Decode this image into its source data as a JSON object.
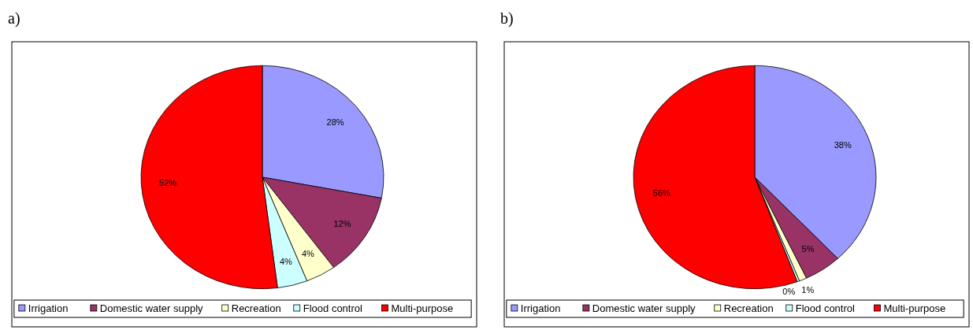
{
  "chart_data": [
    {
      "type": "pie",
      "title": "a)",
      "categories": [
        "Irrigation",
        "Domestic water supply",
        "Recreation",
        "Flood control",
        "Multi-purpose"
      ],
      "values": [
        28,
        12,
        4,
        4,
        52
      ],
      "colors": [
        "#9999ff",
        "#993366",
        "#ffffcc",
        "#ccffff",
        "#ff0000"
      ],
      "value_labels": [
        "28%",
        "12%",
        "4%",
        "4%",
        "52%"
      ],
      "legend": "bottom"
    },
    {
      "type": "pie",
      "title": "b)",
      "categories": [
        "Irrigation",
        "Domestic water supply",
        "Recreation",
        "Flood control",
        "Multi-purpose"
      ],
      "values": [
        38,
        5,
        1,
        0.3,
        55.7
      ],
      "colors": [
        "#9999ff",
        "#993366",
        "#ffffcc",
        "#ccffff",
        "#ff0000"
      ],
      "value_labels": [
        "38%",
        "5%",
        "1%",
        "0%",
        "56%"
      ],
      "legend": "bottom"
    }
  ]
}
